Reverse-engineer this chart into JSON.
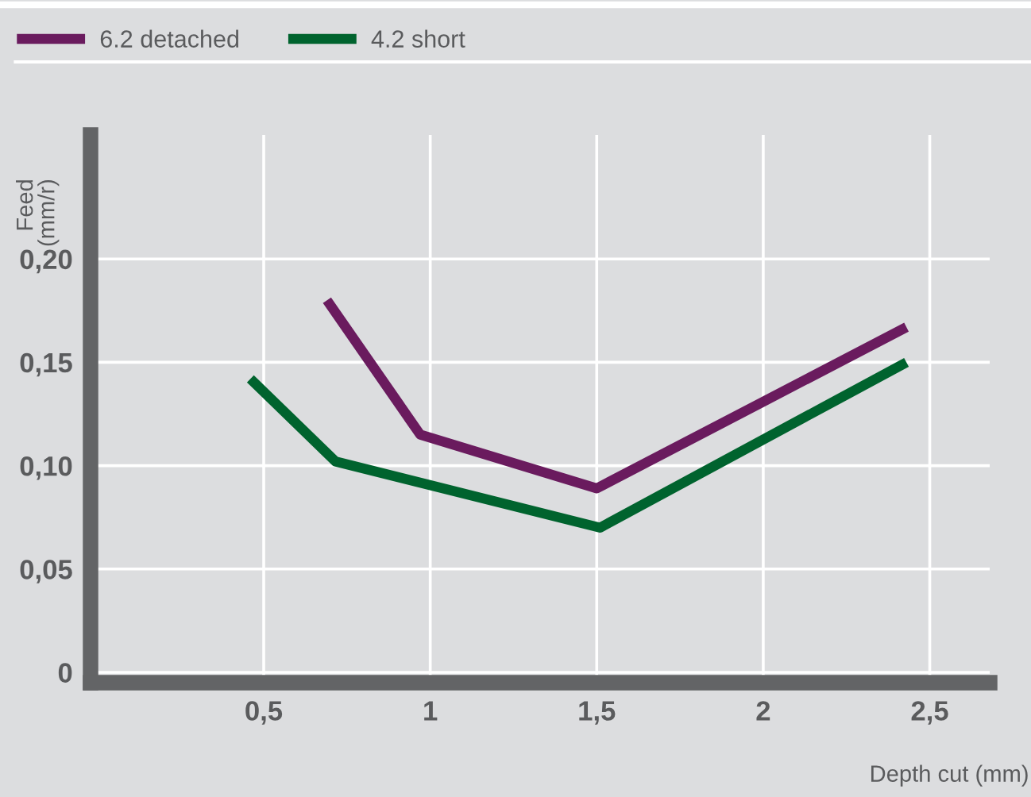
{
  "chart_data": {
    "type": "line",
    "xlabel": "Depth cut (mm)",
    "ylabel": "Feed\n(mm/r)",
    "series": [
      {
        "name": "6.2 detached",
        "color": "#6a1b5e",
        "x": [
          0.69,
          0.97,
          1.5,
          2.43
        ],
        "values": [
          0.18,
          0.115,
          0.089,
          0.167
        ]
      },
      {
        "name": "4.2 short",
        "color": "#00632e",
        "x": [
          0.46,
          0.716,
          1.51,
          2.43
        ],
        "values": [
          0.142,
          0.102,
          0.07,
          0.15
        ]
      }
    ],
    "xlim": [
      -0.02,
      2.68
    ],
    "ylim": [
      -0.005,
      0.26
    ],
    "xticks": [
      {
        "value": 0.5,
        "label": "0,5"
      },
      1,
      {
        "value": 1.5,
        "label": "1,5"
      },
      2,
      {
        "value": 2.5,
        "label": "2,5"
      }
    ],
    "yticks": [
      0,
      {
        "value": 0.05,
        "label": "0,05"
      },
      {
        "value": 0.1,
        "label": "0,10"
      },
      {
        "value": 0.15,
        "label": "0,15"
      },
      {
        "value": 0.2,
        "label": "0,20"
      }
    ],
    "grid": true,
    "legend": "top left",
    "marker": "none",
    "line_style": "solid"
  }
}
